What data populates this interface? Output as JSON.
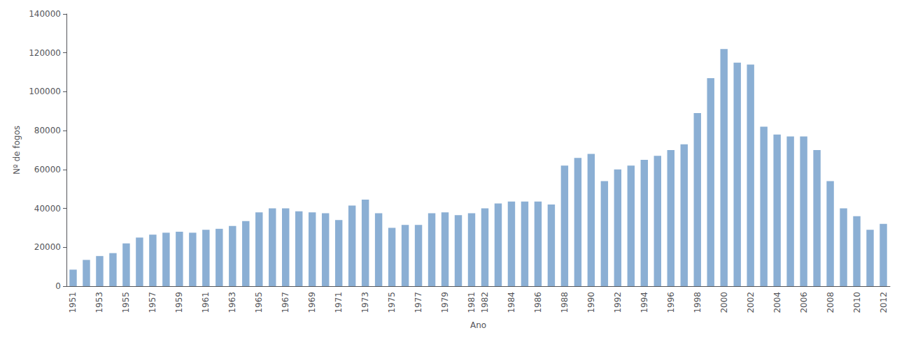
{
  "chart_data": {
    "type": "bar",
    "xlabel": "Ano",
    "ylabel": "Nº de fogos",
    "categories": [
      "1951",
      null,
      "1953",
      null,
      "1955",
      null,
      "1957",
      null,
      "1959",
      null,
      "1961",
      null,
      "1963",
      null,
      "1965",
      null,
      "1967",
      null,
      "1969",
      null,
      "1971",
      null,
      "1973",
      null,
      "1975",
      null,
      "1977",
      null,
      "1979",
      null,
      "1981",
      "1982",
      null,
      "1984",
      null,
      "1986",
      null,
      "1988",
      null,
      "1990",
      null,
      "1992",
      null,
      "1994",
      null,
      "1996",
      null,
      "1998",
      null,
      "2000",
      null,
      "2002",
      null,
      "2004",
      null,
      "2006",
      null,
      "2008",
      null,
      "2010",
      null,
      "2012"
    ],
    "values": [
      8500,
      13500,
      15500,
      17000,
      22000,
      25000,
      26500,
      27500,
      28000,
      27500,
      29000,
      29500,
      31000,
      33500,
      38000,
      40000,
      40000,
      38500,
      38000,
      37500,
      34000,
      41500,
      44500,
      37500,
      30000,
      31500,
      31500,
      37500,
      38000,
      36500,
      37500,
      40000,
      42500,
      43500,
      43500,
      43500,
      42000,
      62000,
      66000,
      68000,
      54000,
      60000,
      62000,
      65000,
      67000,
      70000,
      73000,
      89000,
      107000,
      122000,
      115000,
      114000,
      82000,
      78000,
      77000,
      77000,
      70000,
      54000,
      40000,
      36000,
      29000,
      32000
    ],
    "color": "#8bafd4",
    "ylim": [
      0,
      140000
    ],
    "yticks": [
      0,
      20000,
      40000,
      60000,
      80000,
      100000,
      120000,
      140000
    ],
    "grid": false
  }
}
